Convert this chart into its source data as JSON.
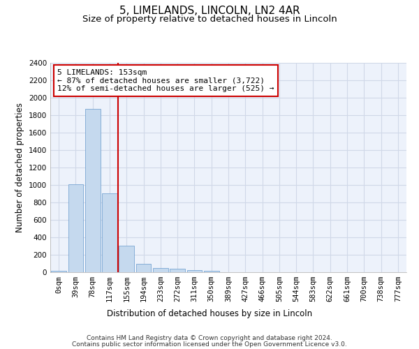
{
  "title": "5, LIMELANDS, LINCOLN, LN2 4AR",
  "subtitle": "Size of property relative to detached houses in Lincoln",
  "xlabel": "Distribution of detached houses by size in Lincoln",
  "ylabel": "Number of detached properties",
  "footer_line1": "Contains HM Land Registry data © Crown copyright and database right 2024.",
  "footer_line2": "Contains public sector information licensed under the Open Government Licence v3.0.",
  "categories": [
    "0sqm",
    "39sqm",
    "78sqm",
    "117sqm",
    "155sqm",
    "194sqm",
    "233sqm",
    "272sqm",
    "311sqm",
    "350sqm",
    "389sqm",
    "427sqm",
    "466sqm",
    "505sqm",
    "544sqm",
    "583sqm",
    "622sqm",
    "661sqm",
    "700sqm",
    "738sqm",
    "777sqm"
  ],
  "bar_values": [
    20,
    1005,
    1870,
    905,
    305,
    100,
    47,
    42,
    28,
    15,
    0,
    0,
    0,
    0,
    0,
    0,
    0,
    0,
    0,
    0,
    0
  ],
  "bar_color": "#c5d9ee",
  "bar_edge_color": "#6699cc",
  "vline_x": 3.5,
  "vline_color": "#cc0000",
  "annotation_text": "5 LIMELANDS: 153sqm\n← 87% of detached houses are smaller (3,722)\n12% of semi-detached houses are larger (525) →",
  "annotation_box_color": "white",
  "annotation_box_edge": "#cc0000",
  "ylim": [
    0,
    2400
  ],
  "yticks": [
    0,
    200,
    400,
    600,
    800,
    1000,
    1200,
    1400,
    1600,
    1800,
    2000,
    2200,
    2400
  ],
  "title_fontsize": 11,
  "subtitle_fontsize": 9.5,
  "tick_fontsize": 7.5,
  "label_fontsize": 8.5,
  "annotation_fontsize": 8,
  "footer_fontsize": 6.5,
  "background_color": "#edf2fb",
  "grid_color": "#d0d8e8"
}
